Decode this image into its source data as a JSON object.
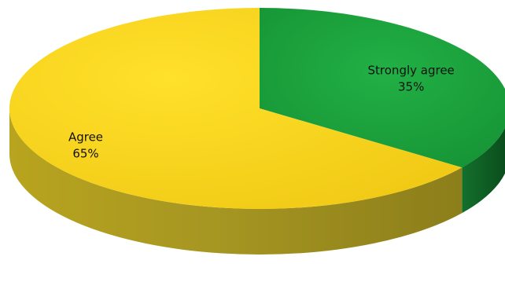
{
  "chart_data": {
    "type": "pie",
    "style": "3d",
    "slices": [
      {
        "label": "Strongly agree",
        "value": 35,
        "value_label": "35%",
        "color": "#1aa33c",
        "side_color": "#0c5e22"
      },
      {
        "label": "Agree",
        "value": 65,
        "value_label": "65%",
        "color": "#f3d21a",
        "side_color": "#a3931a"
      }
    ],
    "legend": "none",
    "title": ""
  }
}
